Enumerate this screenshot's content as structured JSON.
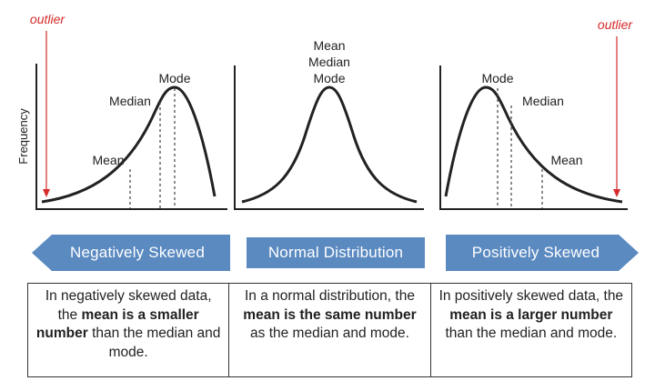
{
  "colors": {
    "banner": "#5b8ac1",
    "outlier": "#d62b2b",
    "curve": "#222222",
    "axis": "#222222"
  },
  "ylabel": "Frequency",
  "panels": {
    "negative": {
      "outlier": "outlier",
      "labels": {
        "mode": "Mode",
        "median": "Median",
        "mean": "Mean"
      }
    },
    "normal": {
      "labels": {
        "mean": "Mean",
        "median": "Median",
        "mode": "Mode"
      }
    },
    "positive": {
      "outlier": "outlier",
      "labels": {
        "mode": "Mode",
        "median": "Median",
        "mean": "Mean"
      }
    }
  },
  "banners": {
    "negative": "Negatively Skewed",
    "normal": "Normal Distribution",
    "positive": "Positively Skewed"
  },
  "descriptions": {
    "negative": {
      "pre": "In negatively skewed data, the ",
      "bold": "mean is a smaller number",
      "post": " than the median and mode."
    },
    "normal": {
      "pre": "In a normal distribution, the ",
      "bold": "mean is the same number",
      "post": " as the median and mode."
    },
    "positive": {
      "pre": "In positively skewed data, the ",
      "bold": "mean is a larger number",
      "post": " than the median and mode."
    }
  }
}
